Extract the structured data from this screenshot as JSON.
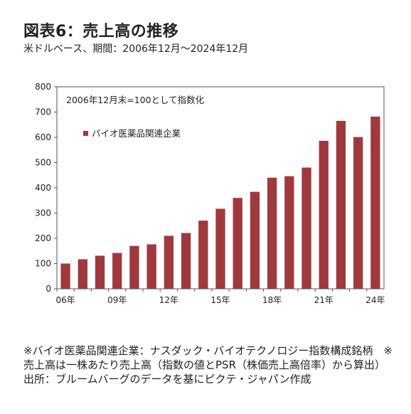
{
  "header": {
    "title": "図表6：売上高の推移",
    "subtitle": "米ドルベース、期間：2006年12月～2024年12月"
  },
  "chart_data": {
    "type": "bar",
    "annotation": "2006年12月末=100として指数化",
    "series": [
      {
        "name": "バイオ医薬品関連企業",
        "color": "#a0393e",
        "values": [
          100,
          117,
          131,
          142,
          170,
          176,
          210,
          221,
          270,
          317,
          360,
          384,
          440,
          446,
          480,
          586,
          665,
          601,
          682
        ]
      }
    ],
    "x_tick_labels": [
      "06年",
      "09年",
      "12年",
      "15年",
      "18年",
      "21年",
      "24年"
    ],
    "x_tick_every": 3,
    "ylim": [
      0,
      800
    ],
    "y_ticks": [
      0,
      100,
      200,
      300,
      400,
      500,
      600,
      700,
      800
    ],
    "grid": false,
    "legend_position": "upper-left"
  },
  "notes": [
    "※バイオ医薬品関連企業：ナスダック・バイオテクノロジー指数構成銘柄　※売上高は一株あたり売上高（指数の値とPSR（株価売上高倍率）から算出）",
    "出所：ブルームバーグのデータを基にピクテ・ジャパン作成"
  ]
}
